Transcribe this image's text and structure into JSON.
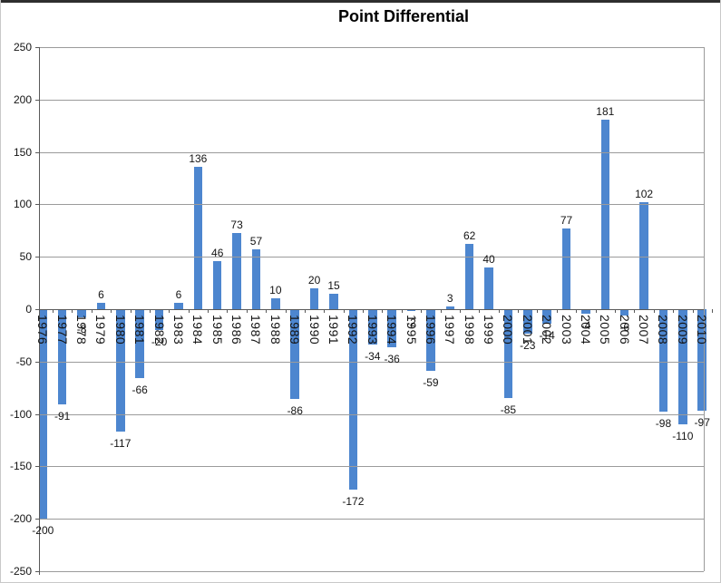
{
  "chart_data": {
    "type": "bar",
    "title": "Point Differential",
    "legend": "none",
    "grid": true,
    "categories": [
      "1976",
      "1977",
      "1978",
      "1979",
      "1980",
      "1981",
      "1982",
      "1983",
      "1984",
      "1985",
      "1986",
      "1987",
      "1988",
      "1989",
      "1990",
      "1991",
      "1992",
      "1993",
      "1994",
      "1995",
      "1996",
      "1997",
      "1998",
      "1999",
      "2000",
      "2001",
      "2002",
      "2003",
      "2004",
      "2005",
      "2006",
      "2007",
      "2008",
      "2009",
      "2010"
    ],
    "values": [
      -200,
      -91,
      -8,
      6,
      -117,
      -66,
      -20,
      6,
      136,
      46,
      73,
      57,
      10,
      -86,
      20,
      15,
      -172,
      -34,
      -36,
      -2,
      -59,
      3,
      62,
      40,
      -85,
      -23,
      -14,
      77,
      -4,
      181,
      -6,
      102,
      -98,
      -110,
      -97
    ],
    "data_labels": [
      "-200",
      "-91",
      "-8",
      "6",
      "-117",
      "-66",
      "-20",
      "6",
      "136",
      "46",
      "73",
      "57",
      "10",
      "-86",
      "20",
      "15",
      "-172",
      "-34",
      "-36",
      "-2",
      "-59",
      "3",
      "62",
      "40",
      "-85",
      "-23",
      "-14",
      "77",
      "-4",
      "181",
      "-6",
      "102",
      "-98",
      "-110",
      "-97"
    ],
    "ylim": [
      -250,
      250
    ],
    "yticks": [
      250,
      200,
      150,
      100,
      50,
      0,
      -50,
      -100,
      -150,
      -200,
      -250
    ],
    "ytick_labels": [
      "250",
      "200",
      "150",
      "100",
      "50",
      "0",
      "-50",
      "-100",
      "-150",
      "-200",
      "-250"
    ],
    "bar_color": "#4d86cf",
    "gridline_color": "#9b9b9b",
    "axis_color": "#595959",
    "text_color": "#141414"
  }
}
